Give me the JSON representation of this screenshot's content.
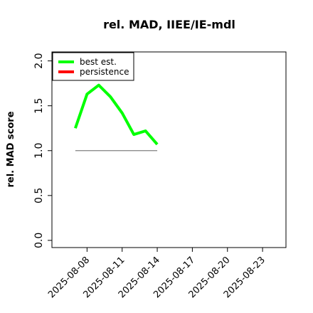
{
  "chart_data": {
    "type": "line",
    "title": "rel. MAD, IIEE/IE-mdl",
    "y_label": "rel. MAD score",
    "x": [
      "2025-08-07",
      "2025-08-08",
      "2025-08-09",
      "2025-08-10",
      "2025-08-11",
      "2025-08-12",
      "2025-08-13",
      "2025-08-14"
    ],
    "series": [
      {
        "name": "best est.",
        "color": "#00ff00",
        "values": [
          1.25,
          1.63,
          1.73,
          1.6,
          1.42,
          1.18,
          1.22,
          1.07
        ]
      },
      {
        "name": "persistence",
        "color": "#ff0000",
        "line_color": "#808080",
        "values": [
          1.0,
          1.0,
          1.0,
          1.0,
          1.0,
          1.0,
          1.0,
          1.0
        ]
      }
    ],
    "xlim": [
      "2025-08-05",
      "2025-08-25"
    ],
    "xticks": [
      "2025-08-08",
      "2025-08-11",
      "2025-08-14",
      "2025-08-17",
      "2025-08-20",
      "2025-08-23"
    ],
    "ylim": [
      -0.08,
      2.1
    ],
    "yticks": [
      {
        "value": 0,
        "label": "0.0"
      },
      {
        "value": 0.5,
        "label": "0.5"
      },
      {
        "value": 1,
        "label": "1.0"
      },
      {
        "value": 1.5,
        "label": "1.5"
      },
      {
        "value": 2,
        "label": "2.0"
      }
    ],
    "legend": "upper left",
    "grid": false
  }
}
